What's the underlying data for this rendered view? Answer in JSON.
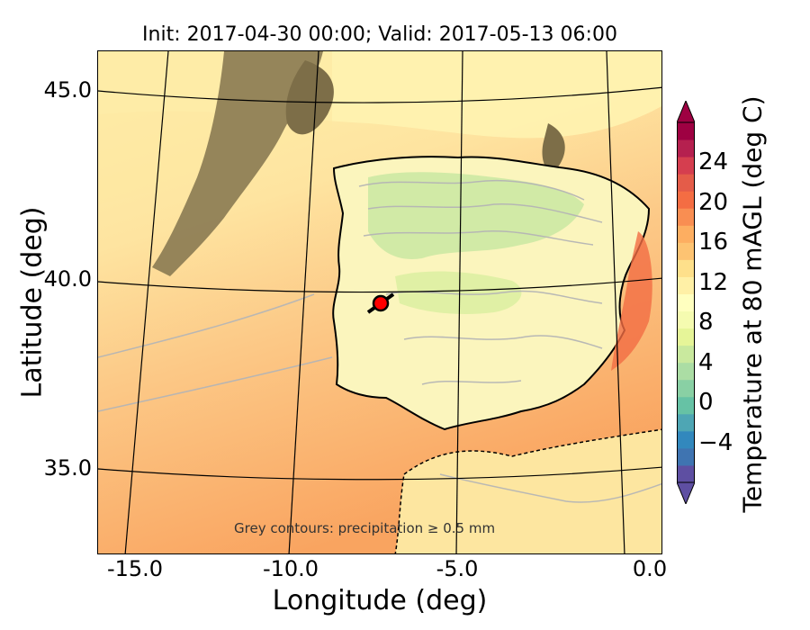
{
  "title": "Init: 2017-04-30 00:00; Valid: 2017-05-13 06:00",
  "xaxis": {
    "label": "Longitude (deg)",
    "ticks": [
      {
        "text": "-15.0",
        "lon": -15.0
      },
      {
        "text": "-10.0",
        "lon": -10.0
      },
      {
        "text": "-5.0",
        "lon": -5.0
      },
      {
        "text": "0.0",
        "lon": 0.0
      }
    ]
  },
  "yaxis": {
    "label": "Latitude (deg)",
    "ticks": [
      {
        "text": "45.0",
        "lat": 45.0
      },
      {
        "text": "40.0",
        "lat": 40.0
      },
      {
        "text": "35.0",
        "lat": 35.0
      }
    ]
  },
  "colorbar": {
    "label": "Temperature at 80 mAGL (deg C)",
    "min": -8,
    "max": 28,
    "ticks": [
      {
        "text": "24",
        "value": 24
      },
      {
        "text": "20",
        "value": 20
      },
      {
        "text": "16",
        "value": 16
      },
      {
        "text": "12",
        "value": 12
      },
      {
        "text": "8",
        "value": 8
      },
      {
        "text": "4",
        "value": 4
      },
      {
        "text": "0",
        "value": 0
      },
      {
        "text": "−4",
        "value": -4
      }
    ],
    "colors": [
      "#5e4fa2",
      "#3f74b1",
      "#3288bd",
      "#4ea6b4",
      "#66c2a5",
      "#89d0a4",
      "#abdda4",
      "#c9e99e",
      "#e6f598",
      "#f5fbb0",
      "#ffffbf",
      "#fff0a6",
      "#fee08b",
      "#fdc372",
      "#fdae61",
      "#f98e52",
      "#f46d43",
      "#e45c49",
      "#d53e4f",
      "#b5204f",
      "#9e0142"
    ]
  },
  "annotation": "Grey contours: precipitation ≥ 0.5 mm",
  "marker": {
    "lon": -7.6,
    "lat": 39.3,
    "color": "#ff0000"
  }
}
